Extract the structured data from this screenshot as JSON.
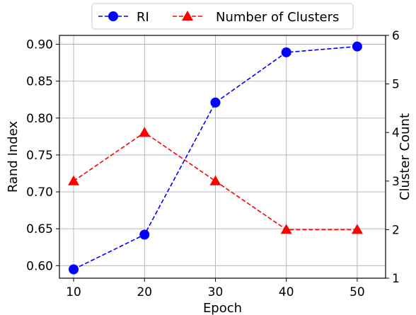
{
  "chart_data": {
    "type": "line",
    "x": [
      10,
      20,
      30,
      40,
      50
    ],
    "xlabel": "Epoch",
    "xlim": [
      8,
      54
    ],
    "xticks": [
      "10",
      "20",
      "30",
      "40",
      "50"
    ],
    "grid": true,
    "legend_position": "top-center",
    "left_axis": {
      "label": "Rand Index",
      "lim": [
        0.583,
        0.912
      ],
      "ticks": [
        "0.60",
        "0.65",
        "0.70",
        "0.75",
        "0.80",
        "0.85",
        "0.90"
      ]
    },
    "right_axis": {
      "label": "Cluster Count",
      "lim": [
        1,
        6
      ],
      "ticks": [
        "1",
        "2",
        "3",
        "4",
        "5",
        "6"
      ]
    },
    "series": [
      {
        "name": "RI",
        "axis": "left",
        "values": [
          0.595,
          0.642,
          0.821,
          0.889,
          0.897
        ],
        "color": "#0000ff",
        "marker": "circle",
        "linestyle": "dashed"
      },
      {
        "name": "Number of Clusters",
        "axis": "right",
        "values": [
          3,
          4,
          3,
          2,
          2
        ],
        "color": "#ff0000",
        "marker": "triangle",
        "linestyle": "dashed"
      }
    ]
  }
}
